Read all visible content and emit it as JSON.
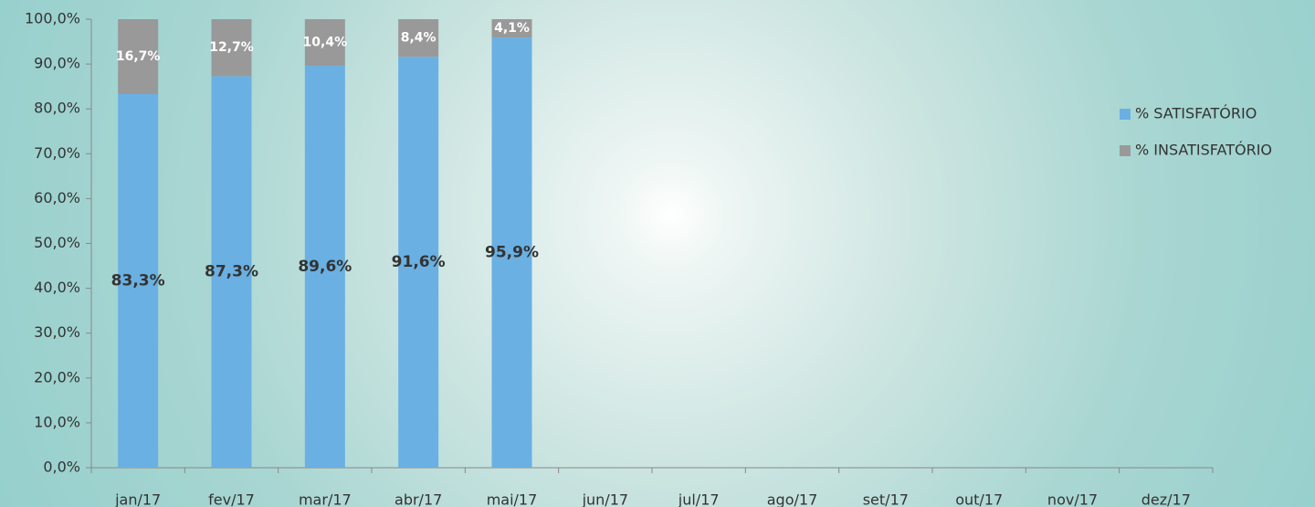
{
  "chart_data": {
    "type": "bar",
    "stacked": true,
    "categories": [
      "jan/17",
      "fev/17",
      "mar/17",
      "abr/17",
      "mai/17",
      "jun/17",
      "jul/17",
      "ago/17",
      "set/17",
      "out/17",
      "nov/17",
      "dez/17"
    ],
    "series": [
      {
        "name": "% SATISFATÓRIO",
        "color": "#6ab0e2",
        "label_color": "#333333",
        "values": [
          83.3,
          87.3,
          89.6,
          91.6,
          95.9,
          null,
          null,
          null,
          null,
          null,
          null,
          null
        ],
        "value_labels": [
          "83,3%",
          "87,3%",
          "89,6%",
          "91,6%",
          "95,9%",
          null,
          null,
          null,
          null,
          null,
          null,
          null
        ]
      },
      {
        "name": "% INSATISFATÓRIO",
        "color": "#999999",
        "label_color": "#ffffff",
        "values": [
          16.7,
          12.7,
          10.4,
          8.4,
          4.1,
          null,
          null,
          null,
          null,
          null,
          null,
          null
        ],
        "value_labels": [
          "16,7%",
          "12,7%",
          "10,4%",
          "8,4%",
          "4,1%",
          null,
          null,
          null,
          null,
          null,
          null,
          null
        ]
      }
    ],
    "ylim": [
      0,
      100
    ],
    "yticks": [
      {
        "value": 0,
        "label": "0,0%"
      },
      {
        "value": 10,
        "label": "10,0%"
      },
      {
        "value": 20,
        "label": "20,0%"
      },
      {
        "value": 30,
        "label": "30,0%"
      },
      {
        "value": 40,
        "label": "40,0%"
      },
      {
        "value": 50,
        "label": "50,0%"
      },
      {
        "value": 60,
        "label": "60,0%"
      },
      {
        "value": 70,
        "label": "70,0%"
      },
      {
        "value": 80,
        "label": "80,0%"
      },
      {
        "value": 90,
        "label": "90,0%"
      },
      {
        "value": 100,
        "label": "100,0%"
      }
    ],
    "legend": "right"
  }
}
